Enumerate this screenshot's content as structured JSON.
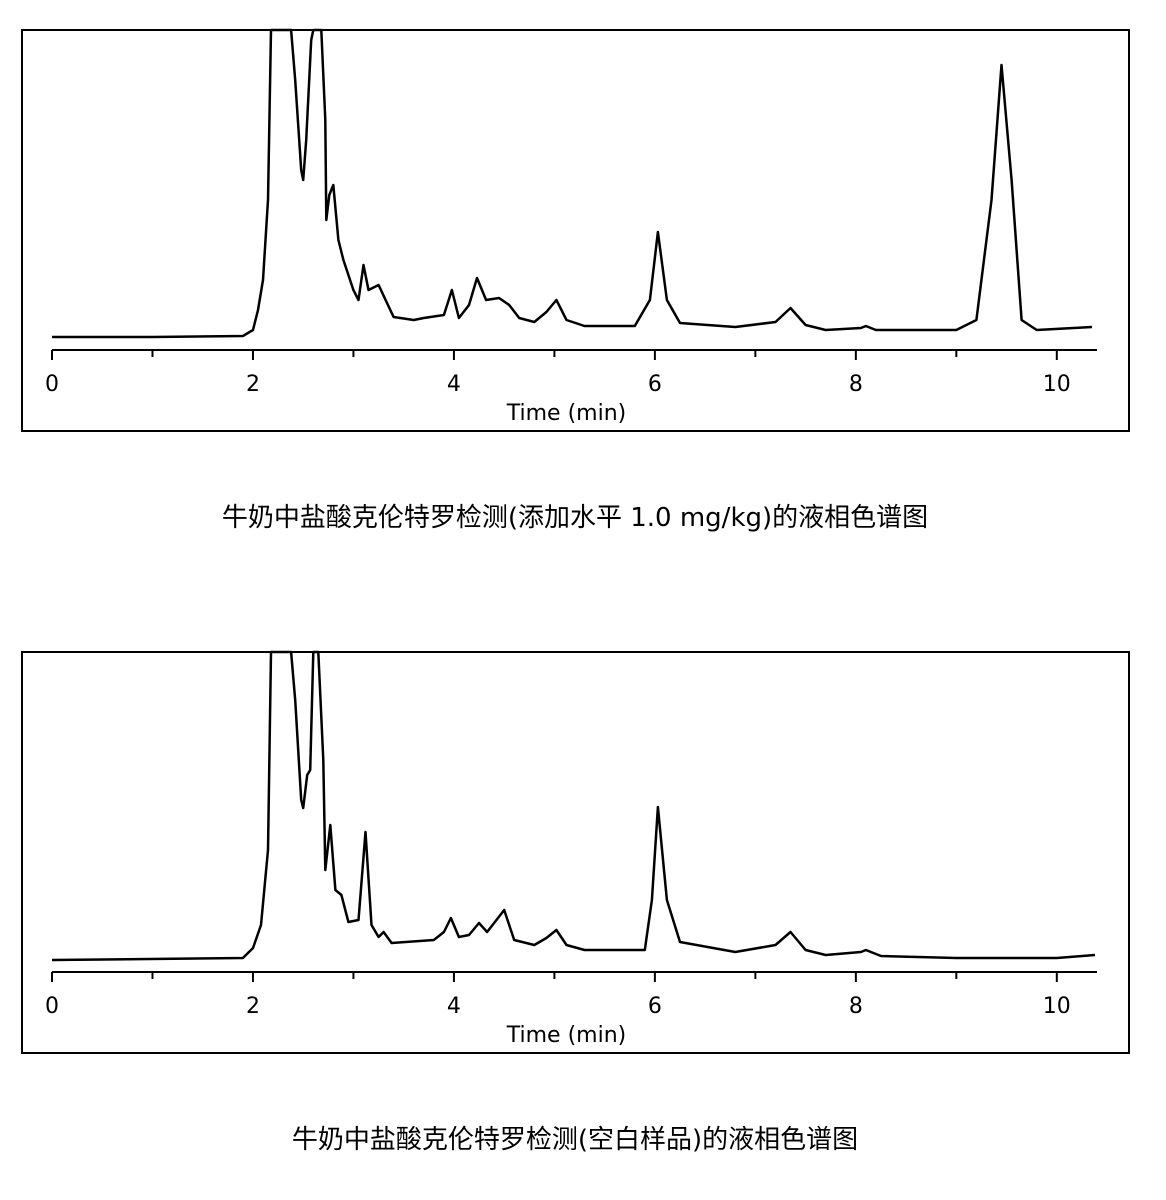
{
  "chart_data": [
    {
      "type": "line",
      "title": "牛奶中盐酸克伦特罗检测(添加水平 1.0 mg/kg)的液相色谱图",
      "x_label": "Time (min)",
      "x": [
        0,
        1,
        1.9,
        2.0,
        2.05,
        2.1,
        2.15,
        2.18,
        2.38,
        2.42,
        2.48,
        2.5,
        2.53,
        2.58,
        2.6,
        2.68,
        2.72,
        2.73,
        2.76,
        2.8,
        2.85,
        2.9,
        3.0,
        3.05,
        3.1,
        3.15,
        3.25,
        3.32,
        3.4,
        3.6,
        3.7,
        3.9,
        3.98,
        4.05,
        4.15,
        4.23,
        4.32,
        4.45,
        4.55,
        4.65,
        4.8,
        4.92,
        5.02,
        5.12,
        5.3,
        5.8,
        5.95,
        6.03,
        6.12,
        6.25,
        6.8,
        7.2,
        7.35,
        7.5,
        7.7,
        8.05,
        8.1,
        8.2,
        9.0,
        9.2,
        9.35,
        9.45,
        9.55,
        9.65,
        9.8,
        10.35
      ],
      "series": [
        {
          "color": "#000000",
          "values": [
            1.3,
            1.3,
            1.4,
            2.0,
            4.0,
            7.0,
            15.0,
            32,
            32,
            27,
            18,
            17,
            21,
            31,
            32,
            32,
            23,
            13,
            15.5,
            16.5,
            11,
            9,
            6,
            5,
            8.5,
            6,
            6.5,
            5,
            3.3,
            3,
            3.2,
            3.5,
            6,
            3.2,
            4.5,
            7.2,
            5,
            5.2,
            4.5,
            3.2,
            2.8,
            3.8,
            5,
            3,
            2.4,
            2.4,
            5,
            11.8,
            5,
            2.7,
            2.3,
            2.8,
            4.2,
            2.5,
            2,
            2.2,
            2.4,
            2,
            2,
            3,
            15,
            28.5,
            17,
            3,
            2,
            2.3
          ]
        }
      ],
      "xlim": [
        0,
        10.4
      ],
      "xticks": [
        0,
        2,
        4,
        6,
        8,
        10
      ],
      "x_minor_ticks": [
        1,
        3,
        5,
        7,
        9
      ],
      "ylim": [
        0,
        32
      ]
    },
    {
      "type": "line",
      "title": "牛奶中盐酸克伦特罗检测(空白样品)的液相色谱图",
      "x_label": "Time (min)",
      "x": [
        0,
        1.9,
        2.0,
        2.08,
        2.15,
        2.18,
        2.38,
        2.42,
        2.48,
        2.5,
        2.54,
        2.57,
        2.6,
        2.65,
        2.7,
        2.72,
        2.77,
        2.82,
        2.88,
        2.95,
        3.05,
        3.12,
        3.18,
        3.25,
        3.3,
        3.38,
        3.8,
        3.9,
        3.97,
        4.05,
        4.15,
        4.25,
        4.33,
        4.5,
        4.6,
        4.8,
        4.92,
        5.02,
        5.12,
        5.3,
        5.9,
        5.97,
        6.03,
        6.12,
        6.25,
        6.8,
        7.2,
        7.35,
        7.5,
        7.7,
        8.05,
        8.1,
        8.25,
        9.0,
        10.0,
        10.38
      ],
      "series": [
        {
          "color": "#000000",
          "values": [
            1.2,
            1.4,
            2.4,
            4.7,
            12.2,
            32,
            32,
            27.2,
            17.2,
            16.4,
            19.7,
            20.2,
            32,
            32,
            21.2,
            10.2,
            14.7,
            8.2,
            7.7,
            5,
            5.2,
            14,
            4.7,
            3.5,
            4,
            2.9,
            3.2,
            4,
            5.4,
            3.5,
            3.7,
            4.9,
            4,
            6.2,
            3.2,
            2.7,
            3.4,
            4.2,
            2.7,
            2.2,
            2.2,
            7.2,
            16.5,
            7.2,
            3,
            2,
            2.7,
            4,
            2.2,
            1.7,
            2,
            2.2,
            1.6,
            1.4,
            1.4,
            1.7
          ]
        }
      ],
      "xlim": [
        0,
        10.4
      ],
      "xticks": [
        0,
        2,
        4,
        6,
        8,
        10
      ],
      "x_minor_ticks": [
        1,
        3,
        5,
        7,
        9
      ],
      "ylim": [
        0,
        32
      ]
    }
  ]
}
